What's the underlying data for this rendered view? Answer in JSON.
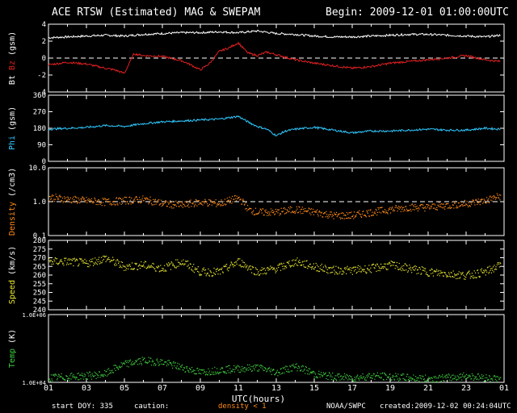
{
  "header": {
    "title": "ACE RTSW (Estimated) MAG & SWEPAM",
    "begin": "Begin: 2009-12-01 01:00:00UTC"
  },
  "footer": {
    "start_doy": "start DOY: 335",
    "caution": "caution:",
    "density_note": "density < 1",
    "noaa": "NOAA/SWPC",
    "created": "created:2009-12-02 00:24:04UTC"
  },
  "colors": {
    "bt": "#ffffff",
    "bz": "#e02020",
    "phi": "#30c8ff",
    "density": "#ff8c1a",
    "speed": "#e8e830",
    "temp": "#40d040",
    "axes": "#ffffff",
    "background": "#000000"
  },
  "chart_data": {
    "type": "line",
    "xlabel": "UTC(hours)",
    "x_ticks": [
      "01",
      "03",
      "05",
      "07",
      "09",
      "11",
      "13",
      "15",
      "17",
      "19",
      "21",
      "23",
      "01"
    ],
    "xlim": [
      1,
      25
    ],
    "panels": [
      {
        "id": "mag",
        "ylabel_parts": [
          {
            "text": "Bt",
            "color": "#ffffff"
          },
          {
            "text": "Bz",
            "color": "#e02020"
          },
          {
            "text": "(gsm)",
            "color": "#ffffff"
          }
        ],
        "ylim": [
          -4,
          4
        ],
        "yticks": [
          "-4",
          "-2",
          "0",
          "2",
          "4"
        ],
        "ytick_values": [
          -4,
          -2,
          0,
          2,
          4
        ],
        "scale": "linear",
        "reference_line": 0,
        "series": [
          {
            "name": "Bt",
            "color": "#ffffff",
            "style": "line",
            "x": [
              1,
              2,
              3,
              4,
              5,
              6,
              7,
              8,
              9,
              10,
              11,
              12,
              13,
              14,
              15,
              16,
              17,
              18,
              19,
              20,
              21,
              22,
              23,
              24,
              24.8
            ],
            "y": [
              2.4,
              2.5,
              2.6,
              2.7,
              2.6,
              2.8,
              2.9,
              3.0,
              3.0,
              3.1,
              3.0,
              3.2,
              2.9,
              2.8,
              2.6,
              2.5,
              2.5,
              2.6,
              2.7,
              2.8,
              2.8,
              2.7,
              2.6,
              2.5,
              2.7
            ]
          },
          {
            "name": "Bz",
            "color": "#e02020",
            "style": "line",
            "x": [
              1,
              2,
              3,
              4,
              4.5,
              5,
              5.5,
              6,
              7,
              8,
              8.5,
              9,
              9.5,
              10,
              10.5,
              11,
              11.5,
              12,
              12.5,
              13,
              14,
              15,
              16,
              17,
              18,
              19,
              20,
              21,
              22,
              23,
              24,
              24.8
            ],
            "y": [
              -0.8,
              -0.5,
              -0.7,
              -1.2,
              -1.4,
              -1.8,
              0.5,
              0.3,
              0.2,
              -0.3,
              -0.8,
              -1.4,
              -0.6,
              0.8,
              1.2,
              1.8,
              0.6,
              0.3,
              0.7,
              0.4,
              -0.2,
              -0.6,
              -0.9,
              -1.2,
              -1.0,
              -0.6,
              -0.4,
              -0.2,
              0.0,
              0.3,
              -0.2,
              -0.4
            ]
          }
        ]
      },
      {
        "id": "phi",
        "ylabel_parts": [
          {
            "text": "Phi",
            "color": "#30c8ff"
          },
          {
            "text": "(gsm)",
            "color": "#ffffff"
          }
        ],
        "ylim": [
          0,
          360
        ],
        "yticks": [
          "0",
          "90",
          "180",
          "270",
          "360"
        ],
        "ytick_values": [
          0,
          90,
          180,
          270,
          360
        ],
        "scale": "linear",
        "series": [
          {
            "name": "Phi",
            "color": "#30c8ff",
            "style": "line",
            "x": [
              1,
              2,
              3,
              4,
              5,
              6,
              7,
              8,
              9,
              10,
              11,
              11.5,
              12,
              12.5,
              13,
              13.5,
              14,
              15,
              16,
              17,
              18,
              19,
              20,
              21,
              22,
              23,
              24,
              24.8
            ],
            "y": [
              175,
              180,
              185,
              195,
              190,
              205,
              215,
              220,
              225,
              230,
              245,
              215,
              190,
              175,
              140,
              165,
              175,
              185,
              170,
              155,
              165,
              165,
              170,
              175,
              170,
              170,
              180,
              175
            ]
          }
        ]
      },
      {
        "id": "density",
        "ylabel_parts": [
          {
            "text": "Density",
            "color": "#ff8c1a"
          },
          {
            "text": "(/cm3)",
            "color": "#ffffff"
          }
        ],
        "ylim": [
          0.1,
          10
        ],
        "yticks": [
          "0.1",
          "1.0",
          "10.0"
        ],
        "ytick_values": [
          0.1,
          1,
          10
        ],
        "scale": "log",
        "reference_line": 1,
        "series": [
          {
            "name": "Density",
            "color": "#ff8c1a",
            "style": "dots",
            "x": [
              1,
              2,
              3,
              4,
              5,
              6,
              7,
              8,
              9,
              10,
              11,
              11.5,
              12,
              13,
              14,
              15,
              16,
              17,
              18,
              19,
              20,
              21,
              22,
              23,
              24,
              24.8
            ],
            "y": [
              1.4,
              1.2,
              1.1,
              1.0,
              1.1,
              1.2,
              0.9,
              0.8,
              1.0,
              0.9,
              1.3,
              0.6,
              0.5,
              0.5,
              0.6,
              0.5,
              0.4,
              0.4,
              0.5,
              0.6,
              0.7,
              0.7,
              0.8,
              0.9,
              1.1,
              1.5
            ]
          }
        ]
      },
      {
        "id": "speed",
        "ylabel_parts": [
          {
            "text": "Speed",
            "color": "#e8e830"
          },
          {
            "text": "(km/s)",
            "color": "#ffffff"
          }
        ],
        "ylim": [
          240,
          280
        ],
        "yticks": [
          "240",
          "245",
          "250",
          "255",
          "260",
          "265",
          "270",
          "275",
          "280"
        ],
        "ytick_values": [
          240,
          245,
          250,
          255,
          260,
          265,
          270,
          275,
          280
        ],
        "scale": "linear",
        "series": [
          {
            "name": "Speed",
            "color": "#e8e830",
            "style": "dots",
            "x": [
              1,
              2,
              3,
              4,
              5,
              6,
              7,
              8,
              9,
              10,
              11,
              12,
              13,
              14,
              15,
              16,
              17,
              18,
              19,
              20,
              21,
              22,
              23,
              24,
              24.8
            ],
            "y": [
              268,
              268,
              267,
              270,
              265,
              266,
              264,
              268,
              262,
              262,
              268,
              262,
              264,
              268,
              265,
              263,
              263,
              264,
              266,
              264,
              262,
              261,
              260,
              262,
              266
            ]
          }
        ]
      },
      {
        "id": "temp",
        "ylabel_parts": [
          {
            "text": "Temp",
            "color": "#40d040"
          },
          {
            "text": "(K)",
            "color": "#ffffff"
          }
        ],
        "ylim": [
          10000,
          1000000
        ],
        "yticks": [
          "1.0E+04",
          "1.0E+06"
        ],
        "ytick_values": [
          10000,
          1000000
        ],
        "scale": "log",
        "series": [
          {
            "name": "Temp",
            "color": "#40d040",
            "style": "dots",
            "x": [
              1,
              2,
              3,
              4,
              5,
              6,
              7,
              8,
              9,
              10,
              11,
              12,
              13,
              14,
              15,
              16,
              17,
              18,
              19,
              20,
              21,
              22,
              23,
              24,
              24.8
            ],
            "y": [
              14000,
              15000,
              16000,
              18000,
              35000,
              45000,
              40000,
              28000,
              20000,
              24000,
              26000,
              28000,
              20000,
              30000,
              18000,
              15000,
              14000,
              16000,
              15000,
              14000,
              13000,
              14000,
              16000,
              14000,
              13000
            ]
          }
        ]
      }
    ]
  }
}
